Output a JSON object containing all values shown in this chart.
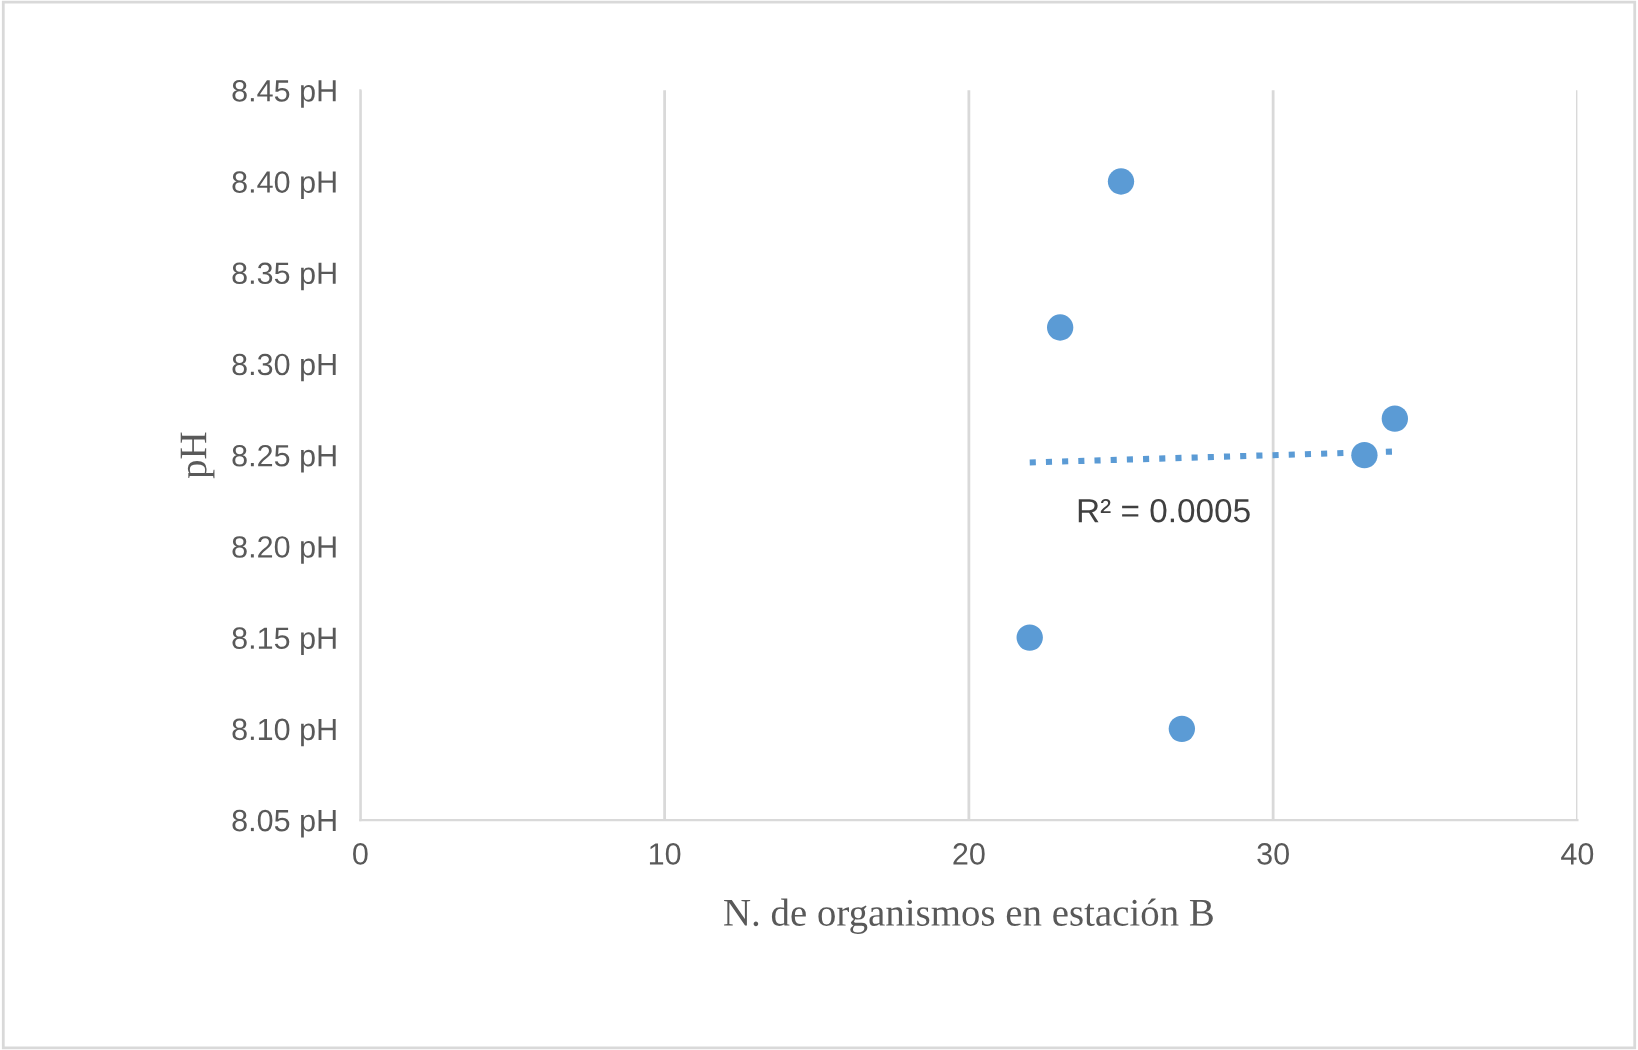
{
  "chart_data": {
    "type": "scatter",
    "xlabel": "N. de organismos en estación B",
    "ylabel": "pH",
    "xlim": [
      0,
      40
    ],
    "xticks": [
      0,
      10,
      20,
      30,
      40
    ],
    "ylim": [
      8.05,
      8.45
    ],
    "yticks": [
      {
        "value": 8.05,
        "label": "8.05 pH"
      },
      {
        "value": 8.1,
        "label": "8.10 pH"
      },
      {
        "value": 8.15,
        "label": "8.15 pH"
      },
      {
        "value": 8.2,
        "label": "8.20 pH"
      },
      {
        "value": 8.25,
        "label": "8.25 pH"
      },
      {
        "value": 8.3,
        "label": "8.30 pH"
      },
      {
        "value": 8.35,
        "label": "8.35 pH"
      },
      {
        "value": 8.4,
        "label": "8.40 pH"
      },
      {
        "value": 8.45,
        "label": "8.45 pH"
      }
    ],
    "grid": "x",
    "series": [
      {
        "marker": "circle",
        "color": "#5b9bd5",
        "x": [
          25,
          23,
          34,
          33,
          22,
          27
        ],
        "values": [
          8.4,
          8.32,
          8.27,
          8.25,
          8.15,
          8.1
        ]
      },
      {
        "type": "line",
        "marker": "none",
        "color": "#5b9bd5",
        "line_style": "dotted",
        "x": [
          22,
          34
        ],
        "values": [
          8.246,
          8.252
        ]
      }
    ],
    "annotations": [
      "R² = 0.0005"
    ]
  }
}
